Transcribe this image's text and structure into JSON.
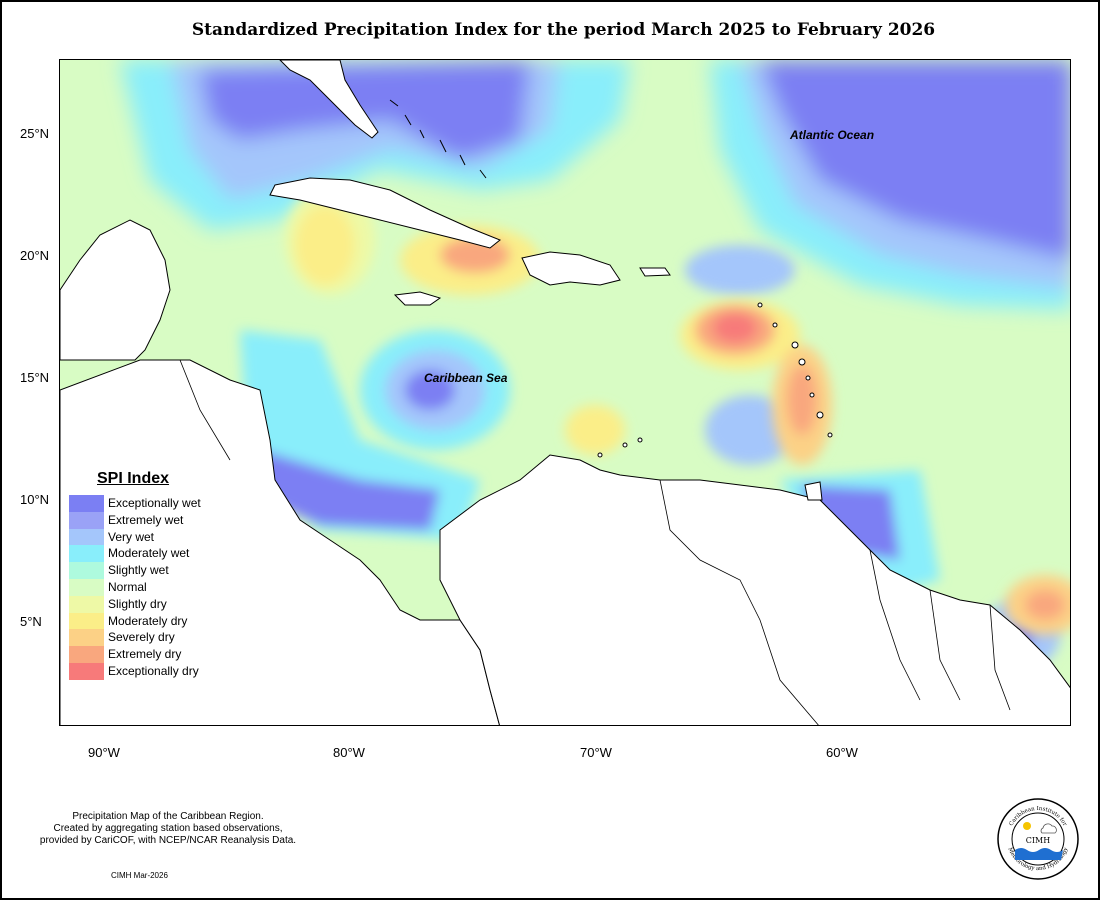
{
  "title": "Standardized Precipitation Index for the period March 2025 to February 2026",
  "axes": {
    "y_ticks": [
      "25°N",
      "20°N",
      "15°N",
      "10°N",
      "5°N"
    ],
    "x_ticks": [
      "90°W",
      "80°W",
      "70°W",
      "60°W"
    ]
  },
  "labels": {
    "atlantic": "Atlantic Ocean",
    "caribbean": "Caribbean Sea"
  },
  "legend": {
    "title": "SPI Index",
    "items": [
      {
        "label": "Exceptionally wet",
        "color": "#7b7ff3"
      },
      {
        "label": "Extremely wet",
        "color": "#9aa2f6"
      },
      {
        "label": "Very wet",
        "color": "#a4c6fb"
      },
      {
        "label": "Moderately wet",
        "color": "#89eefb"
      },
      {
        "label": "Slightly wet",
        "color": "#aefade"
      },
      {
        "label": "Normal",
        "color": "#d8fcc4"
      },
      {
        "label": "Slightly dry",
        "color": "#eef9a6"
      },
      {
        "label": "Moderately dry",
        "color": "#fbee88"
      },
      {
        "label": "Severely dry",
        "color": "#fcd186"
      },
      {
        "label": "Extremely dry",
        "color": "#f9a77e"
      },
      {
        "label": "Exceptionally dry",
        "color": "#f77a7a"
      }
    ]
  },
  "footnote": [
    "Precipitation Map of the Caribbean Region.",
    "Created by aggregating station based observations,",
    "provided by CariCOF, with NCEP/NCAR Reanalysis Data."
  ],
  "credit": "CIMH Mar-2026",
  "logo": {
    "ring_top": "Caribbean Institute for",
    "ring_bottom": "Meteorology and Hydrology",
    "center": "CIMH"
  }
}
